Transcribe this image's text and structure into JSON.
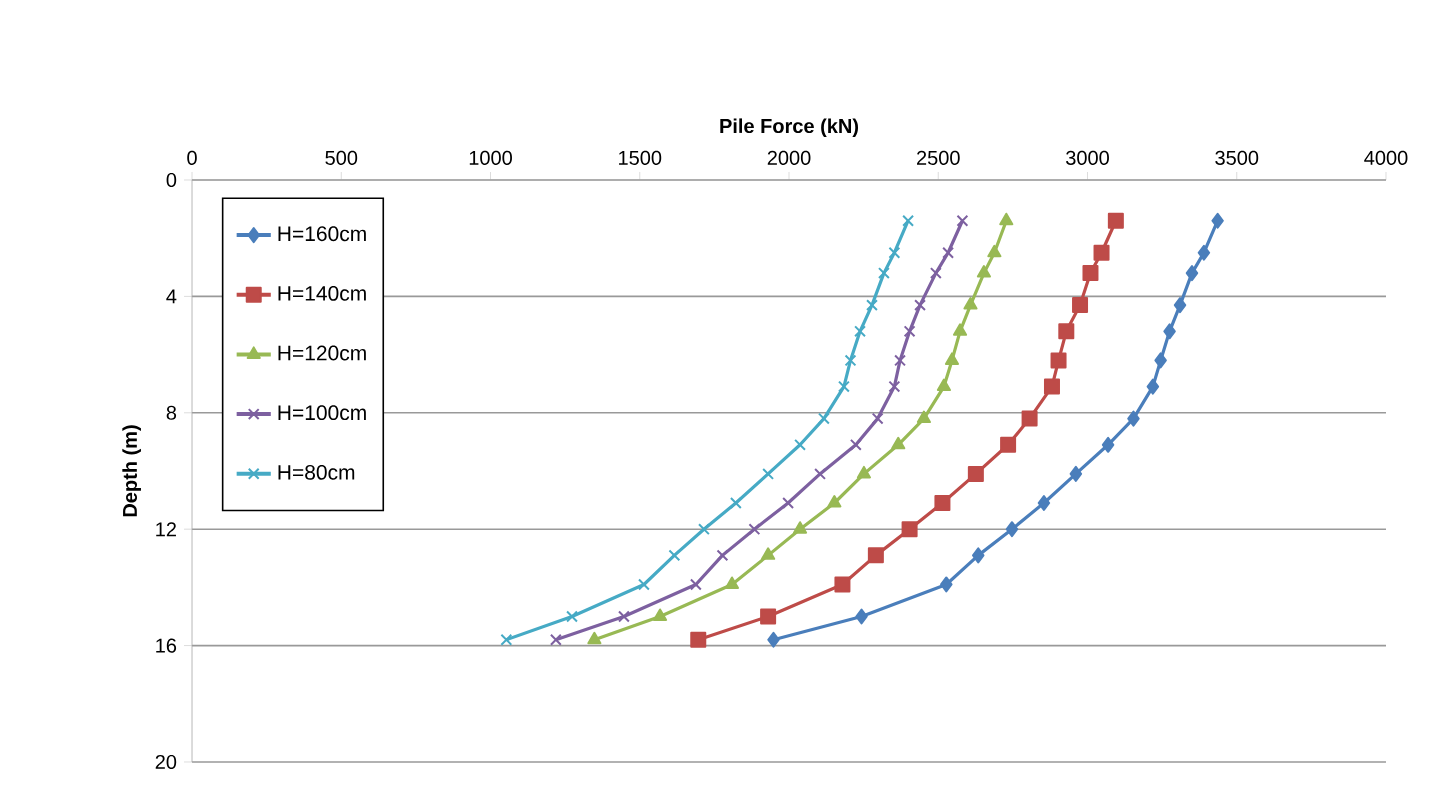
{
  "chart_data": {
    "type": "line",
    "xlabel": "Pile Force (kN)",
    "ylabel": "Depth (m)",
    "xlim": [
      0,
      4000
    ],
    "xticks": [
      0,
      500,
      1000,
      1500,
      2000,
      2500,
      3000,
      3500,
      4000
    ],
    "ylim": [
      20,
      0
    ],
    "yticks": [
      0,
      4,
      8,
      12,
      16,
      20
    ],
    "grid": "y",
    "legend": "top left",
    "series": [
      {
        "name": "H=160cm",
        "color": "#4a7ebb",
        "marker": "diamond",
        "x": [
          3436,
          3390,
          3350,
          3310,
          3275,
          3245,
          3219,
          3154,
          3069,
          2961,
          2854,
          2747,
          2634,
          2527,
          2243,
          1948
        ],
        "values": [
          1.4,
          2.5,
          3.2,
          4.3,
          5.2,
          6.2,
          7.1,
          8.2,
          9.1,
          10.1,
          11.1,
          12.0,
          12.9,
          13.9,
          15.0,
          15.8
        ]
      },
      {
        "name": "H=140cm",
        "color": "#be4b48",
        "marker": "square",
        "x": [
          3095,
          3047,
          3010,
          2975,
          2929,
          2903,
          2881,
          2806,
          2734,
          2626,
          2514,
          2404,
          2291,
          2179,
          1930,
          1696
        ],
        "values": [
          1.4,
          2.5,
          3.2,
          4.3,
          5.2,
          6.2,
          7.1,
          8.2,
          9.1,
          10.1,
          11.1,
          12.0,
          12.9,
          13.9,
          15.0,
          15.8
        ]
      },
      {
        "name": "H=120cm",
        "color": "#98b954",
        "marker": "triangle",
        "x": [
          2728,
          2688,
          2653,
          2608,
          2573,
          2546,
          2519,
          2452,
          2366,
          2251,
          2152,
          2037,
          1930,
          1809,
          1568,
          1348
        ],
        "values": [
          1.4,
          2.5,
          3.2,
          4.3,
          5.2,
          6.2,
          7.1,
          8.2,
          9.1,
          10.1,
          11.1,
          12.0,
          12.9,
          13.9,
          15.0,
          15.8
        ]
      },
      {
        "name": "H=100cm",
        "color": "#7d60a0",
        "marker": "cross",
        "x": [
          2581,
          2533,
          2492,
          2439,
          2404,
          2372,
          2353,
          2297,
          2224,
          2104,
          1997,
          1884,
          1777,
          1688,
          1447,
          1219
        ],
        "values": [
          1.4,
          2.5,
          3.2,
          4.3,
          5.2,
          6.2,
          7.1,
          8.2,
          9.1,
          10.1,
          11.1,
          12.0,
          12.9,
          13.9,
          15.0,
          15.8
        ]
      },
      {
        "name": "H=80cm",
        "color": "#46aac5",
        "marker": "cross",
        "x": [
          2399,
          2353,
          2318,
          2278,
          2238,
          2206,
          2184,
          2117,
          2037,
          1930,
          1822,
          1715,
          1616,
          1514,
          1273,
          1053
        ],
        "values": [
          1.4,
          2.5,
          3.2,
          4.3,
          5.2,
          6.2,
          7.1,
          8.2,
          9.1,
          10.1,
          11.1,
          12.0,
          12.9,
          13.9,
          15.0,
          15.8
        ]
      }
    ]
  }
}
